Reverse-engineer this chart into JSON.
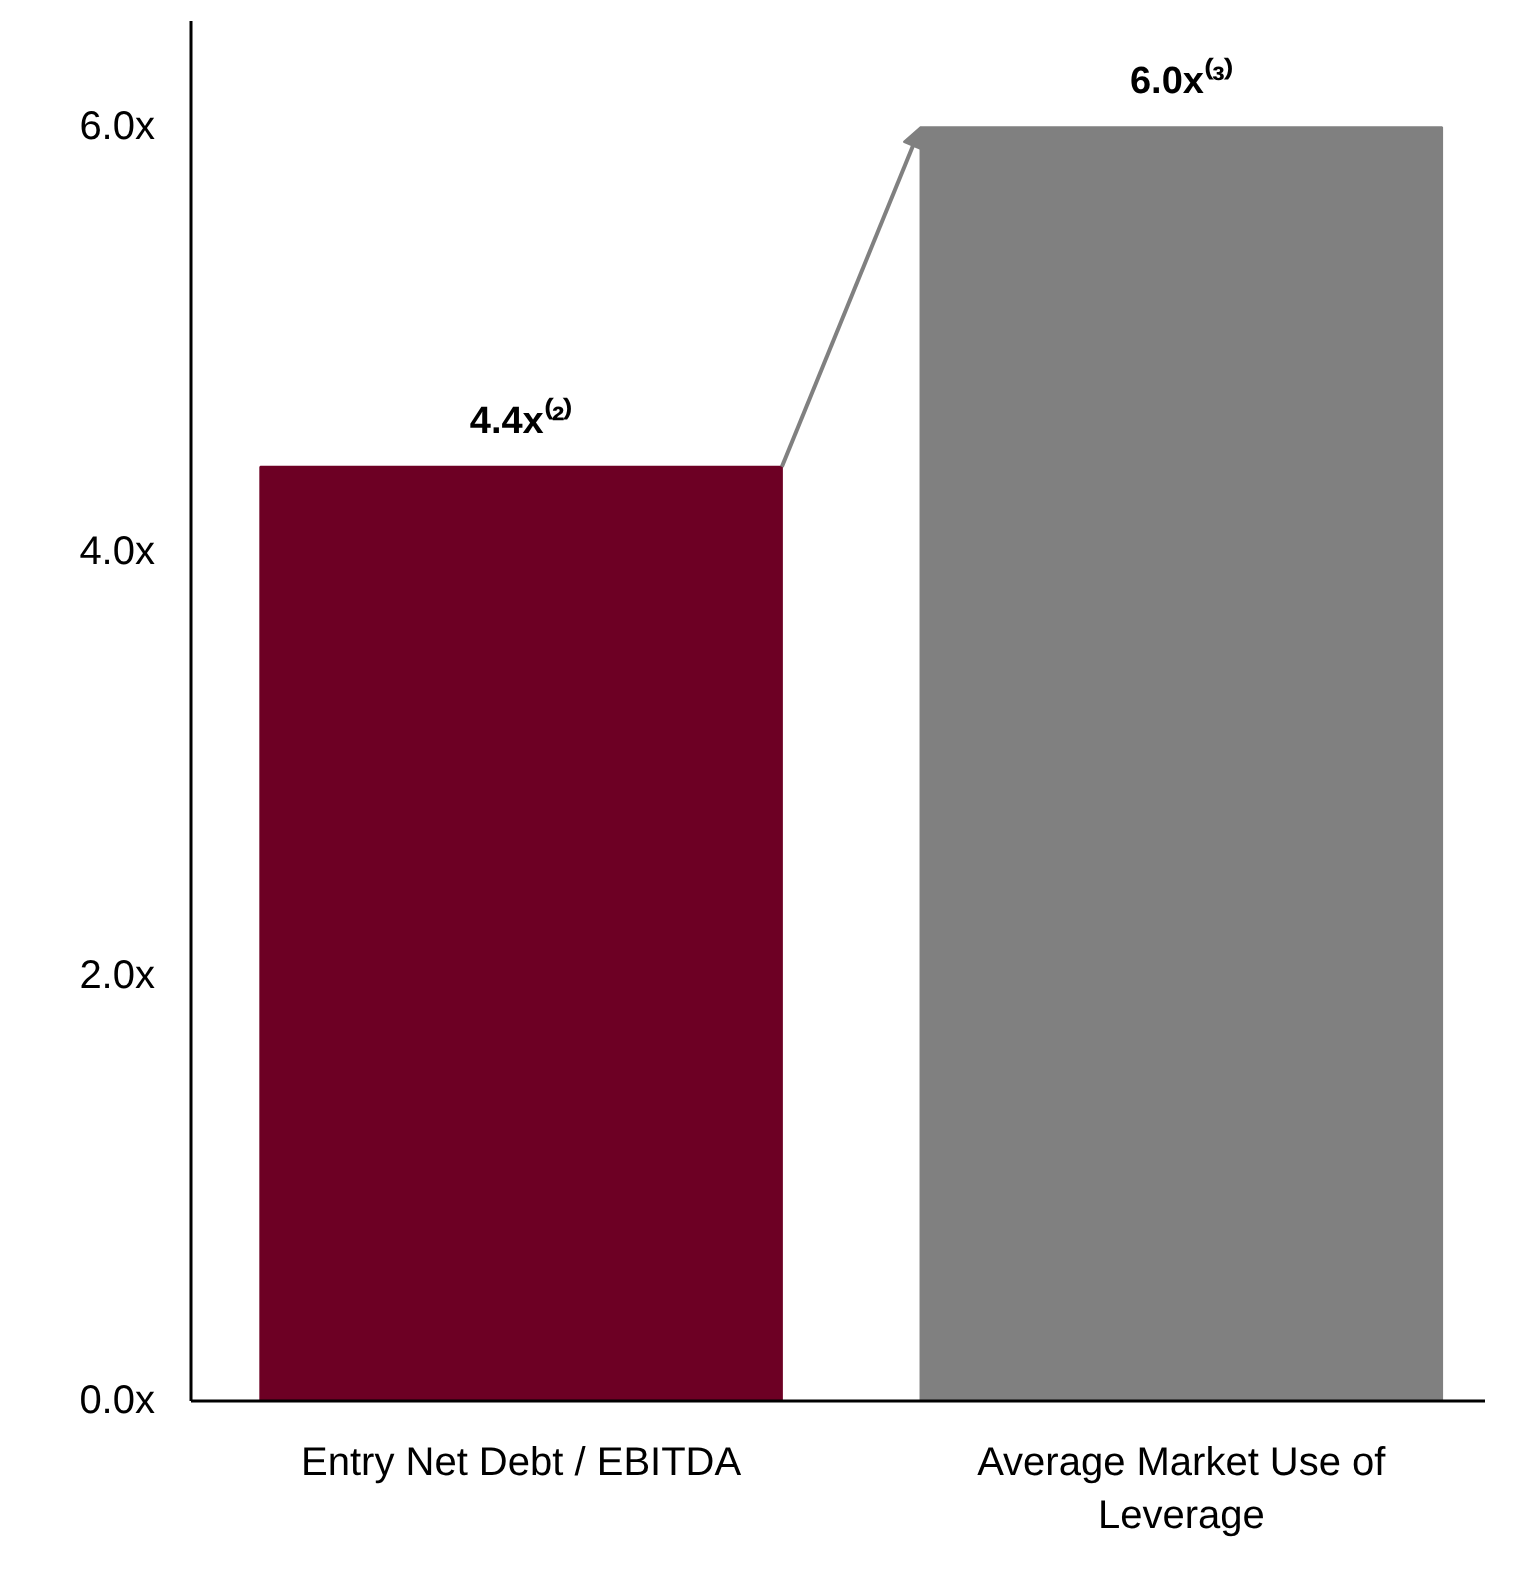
{
  "chart_data": {
    "type": "bar",
    "categories": [
      "Entry Net Debt / EBITDA",
      "Average Market Use of Leverage"
    ],
    "values": [
      4.4,
      6.0
    ],
    "colors": [
      "#6d0024",
      "#808080"
    ],
    "value_labels": [
      "4.4x⁽²⁾",
      "6.0x⁽³⁾"
    ],
    "ylim": [
      0,
      6.5
    ],
    "yticks": [
      {
        "value": 0,
        "label": "0.0x"
      },
      {
        "value": 2,
        "label": "2.0x"
      },
      {
        "value": 4,
        "label": "4.0x"
      },
      {
        "value": 6,
        "label": "6.0x"
      }
    ],
    "grid": false
  }
}
